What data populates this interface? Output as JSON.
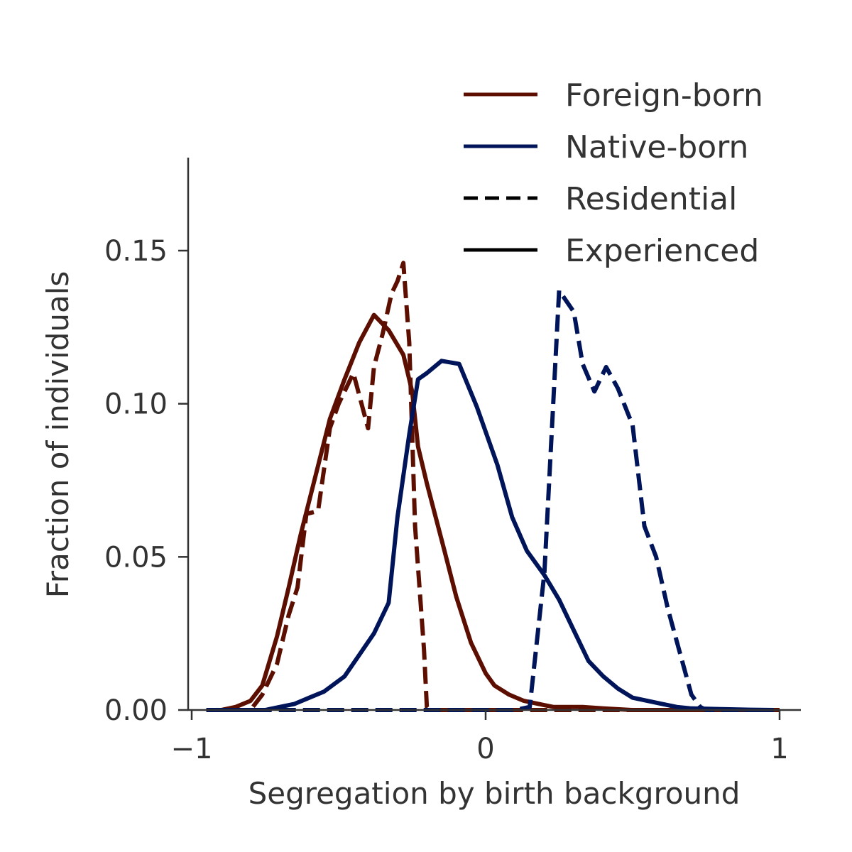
{
  "chart_data": {
    "type": "line",
    "title": "",
    "xlabel": "Segregation by birth background",
    "ylabel": "Fraction of individuals",
    "xlim": [
      -1.03,
      1.07
    ],
    "ylim": [
      0,
      0.18
    ],
    "xticks": [
      -1,
      0,
      1
    ],
    "xtick_labels": [
      "−1",
      "0",
      "1"
    ],
    "yticks": [
      0,
      0.05,
      0.1,
      0.15
    ],
    "ytick_labels": [
      "0.00",
      "0.05",
      "0.10",
      "0.15"
    ],
    "grid": false,
    "legend_position": "top-right",
    "legend": [
      {
        "label": "Foreign-born",
        "color": "#5c0f00",
        "dash": "solid"
      },
      {
        "label": "Native-born",
        "color": "#00145a",
        "dash": "solid"
      },
      {
        "label": "Residential",
        "color": "#000000",
        "dash": "dashed"
      },
      {
        "label": "Experienced",
        "color": "#000000",
        "dash": "solid"
      }
    ],
    "series": [
      {
        "group": "Foreign-born",
        "kind": "Residential",
        "color": "#5c0f00",
        "dash": "dashed",
        "x": [
          -0.95,
          -0.9,
          -0.85,
          -0.8,
          -0.76,
          -0.71,
          -0.67,
          -0.64,
          -0.61,
          -0.57,
          -0.53,
          -0.5,
          -0.45,
          -0.4,
          -0.38,
          -0.35,
          -0.32,
          -0.3,
          -0.28,
          -0.26,
          -0.24,
          -0.21,
          -0.2,
          -0.19,
          -0.18,
          -0.17,
          -0.1,
          0,
          0.05,
          0.1,
          0.15,
          0.2,
          0.3,
          0.5,
          0.7,
          1.0
        ],
        "y": [
          0,
          0,
          0,
          0,
          0.005,
          0.015,
          0.031,
          0.04,
          0.064,
          0.065,
          0.092,
          0.1,
          0.11,
          0.092,
          0.112,
          0.123,
          0.136,
          0.14,
          0.146,
          0.12,
          0.06,
          0.02,
          0.001,
          0,
          0,
          0,
          0,
          0,
          0,
          0,
          0,
          0,
          0,
          0,
          0,
          0
        ]
      },
      {
        "group": "Foreign-born",
        "kind": "Experienced",
        "color": "#5c0f00",
        "dash": "solid",
        "x": [
          -0.95,
          -0.9,
          -0.85,
          -0.8,
          -0.76,
          -0.71,
          -0.67,
          -0.63,
          -0.58,
          -0.53,
          -0.48,
          -0.43,
          -0.38,
          -0.33,
          -0.28,
          -0.25,
          -0.23,
          -0.2,
          -0.17,
          -0.14,
          -0.1,
          -0.05,
          0,
          0.03,
          0.08,
          0.13,
          0.18,
          0.23,
          0.28,
          0.33,
          0.4,
          0.5,
          0.6,
          0.7,
          0.8,
          0.9,
          0.98
        ],
        "y": [
          0,
          0,
          0.001,
          0.003,
          0.008,
          0.024,
          0.04,
          0.057,
          0.076,
          0.095,
          0.108,
          0.12,
          0.129,
          0.124,
          0.116,
          0.104,
          0.086,
          0.074,
          0.063,
          0.052,
          0.037,
          0.022,
          0.012,
          0.008,
          0.005,
          0.003,
          0.002,
          0.001,
          0.001,
          0.001,
          0.0005,
          0,
          0,
          0,
          0,
          0,
          0
        ]
      },
      {
        "group": "Native-born",
        "kind": "Residential",
        "color": "#00145a",
        "dash": "dashed",
        "x": [
          -0.95,
          -0.5,
          0,
          0.1,
          0.15,
          0.2,
          0.25,
          0.3,
          0.33,
          0.37,
          0.41,
          0.45,
          0.5,
          0.54,
          0.58,
          0.62,
          0.66,
          0.7,
          0.73,
          0.75,
          0.78,
          0.85,
          0.98
        ],
        "y": [
          0,
          0,
          0,
          0,
          0.001,
          0.045,
          0.137,
          0.13,
          0.113,
          0.104,
          0.112,
          0.105,
          0.093,
          0.06,
          0.05,
          0.033,
          0.019,
          0.005,
          0.001,
          0,
          0,
          0,
          0
        ]
      },
      {
        "group": "Native-born",
        "kind": "Experienced",
        "color": "#00145a",
        "dash": "solid",
        "x": [
          -0.95,
          -0.8,
          -0.75,
          -0.7,
          -0.65,
          -0.6,
          -0.55,
          -0.48,
          -0.43,
          -0.38,
          -0.33,
          -0.3,
          -0.26,
          -0.23,
          -0.2,
          -0.15,
          -0.09,
          -0.03,
          0.04,
          0.09,
          0.14,
          0.2,
          0.25,
          0.3,
          0.35,
          0.4,
          0.45,
          0.5,
          0.55,
          0.6,
          0.65,
          0.7,
          0.8,
          0.9,
          0.98
        ],
        "y": [
          0,
          0,
          0,
          0.001,
          0.002,
          0.004,
          0.006,
          0.011,
          0.018,
          0.025,
          0.035,
          0.063,
          0.09,
          0.108,
          0.11,
          0.114,
          0.113,
          0.099,
          0.08,
          0.063,
          0.052,
          0.044,
          0.036,
          0.026,
          0.016,
          0.011,
          0.007,
          0.004,
          0.003,
          0.002,
          0.001,
          0.0005,
          0.0003,
          0.0001,
          0
        ]
      }
    ]
  }
}
